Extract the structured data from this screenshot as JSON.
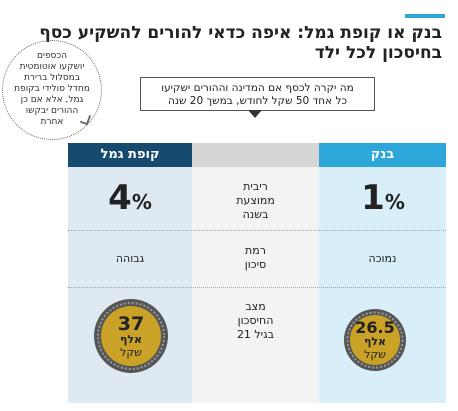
{
  "header": {
    "title_line1": "בנק או קופת גמל: איפה כדאי להורים להשקיע כסף",
    "title_line2": "בחיסכון לכל ילד"
  },
  "note": {
    "lines": [
      "הכספים",
      "יושקעו אוטומטית",
      "במסלול ברירת",
      "מחדל סולידי בקופת",
      "גמל, אלא אם כן",
      "ההורים יבקשו",
      "אחרת"
    ]
  },
  "callout": {
    "line1": "מה יקרה לכסף אם המדינה וההורים ישקיעו",
    "line2": "כל אחד 50 שקל לחודש, במשך 20 שנה"
  },
  "columns": {
    "left_header": "קופת גמל",
    "right_header": "בנק"
  },
  "rows": {
    "interest_label": [
      "ריבית",
      "ממוצעת",
      "בשנה"
    ],
    "risk_label": [
      "רמת",
      "סיכון"
    ],
    "savings_label": [
      "מצב",
      "החיסכון",
      "בגיל 21"
    ]
  },
  "gemel": {
    "interest_num": "4",
    "interest_pct": "%",
    "risk": "גבוהה",
    "savings_num": "37",
    "savings_unit": "אלף",
    "savings_currency": "שקל"
  },
  "bank": {
    "interest_num": "1",
    "interest_pct": "%",
    "risk": "נמוכה",
    "savings_num": "26.5",
    "savings_unit": "אלף",
    "savings_currency": "שקל"
  },
  "colors": {
    "accent_blue": "#2da6d9",
    "dark_blue": "#174a6f",
    "gold": "#c9a227"
  }
}
